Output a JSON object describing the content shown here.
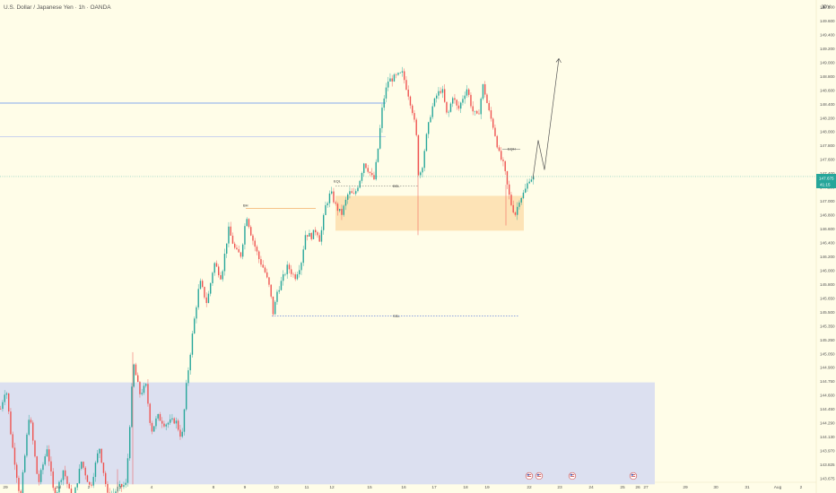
{
  "chart_data": {
    "type": "candlestick",
    "title": "U.S. Dollar / Japanese Yen · 1h · OANDA",
    "currency": "JPY",
    "price_label": "147.675",
    "countdown_label": "41:15",
    "y_ticks": [
      "149.800",
      "149.600",
      "149.400",
      "149.200",
      "149.000",
      "148.800",
      "148.600",
      "148.400",
      "148.200",
      "148.000",
      "147.800",
      "147.600",
      "147.400",
      "147.200",
      "147.000",
      "146.800",
      "146.600",
      "146.400",
      "146.200",
      "146.000",
      "145.800",
      "145.650",
      "145.500",
      "145.350",
      "145.250",
      "145.050",
      "144.900",
      "144.750",
      "144.600",
      "144.450",
      "144.290",
      "144.130",
      "143.970",
      "143.825",
      "143.675"
    ],
    "x_ticks": [
      "29",
      "Jul",
      "2",
      "3",
      "4",
      "8",
      "9",
      "10",
      "11",
      "12",
      "15",
      "16",
      "17",
      "18",
      "19",
      "22",
      "23",
      "24",
      "25",
      "26",
      "27",
      "29",
      "30",
      "31",
      "Aug",
      "2"
    ],
    "annotations": {
      "swept_high": "BH",
      "mid_label": "BSL",
      "low_label": "SSL",
      "eq_label": "EQL",
      "small_label": "EQH"
    },
    "anchors": [
      [
        0,
        144.6
      ],
      [
        6,
        144.9
      ],
      [
        12,
        144.2
      ],
      [
        22,
        143.4
      ],
      [
        32,
        144.55
      ],
      [
        42,
        143.6
      ],
      [
        52,
        144.1
      ],
      [
        60,
        143.4
      ],
      [
        70,
        143.8
      ],
      [
        80,
        143.35
      ],
      [
        90,
        143.9
      ],
      [
        100,
        143.55
      ],
      [
        110,
        144.1
      ],
      [
        120,
        143.4
      ],
      [
        131,
        143.55
      ],
      [
        140,
        143.6
      ],
      [
        148,
        145.2
      ],
      [
        155,
        144.8
      ],
      [
        162,
        144.9
      ],
      [
        168,
        144.3
      ],
      [
        175,
        144.5
      ],
      [
        183,
        144.4
      ],
      [
        195,
        144.45
      ],
      [
        202,
        144.2
      ],
      [
        207,
        144.9
      ],
      [
        215,
        145.7
      ],
      [
        222,
        146.3
      ],
      [
        230,
        146.0
      ],
      [
        238,
        146.55
      ],
      [
        246,
        146.35
      ],
      [
        254,
        147.0
      ],
      [
        262,
        146.7
      ],
      [
        268,
        146.65
      ],
      [
        274,
        147.2
      ],
      [
        280,
        146.9
      ],
      [
        288,
        146.6
      ],
      [
        294,
        146.45
      ],
      [
        300,
        146.2
      ],
      [
        304,
        145.85
      ],
      [
        308,
        146.15
      ],
      [
        315,
        146.35
      ],
      [
        320,
        146.5
      ],
      [
        328,
        146.35
      ],
      [
        335,
        146.55
      ],
      [
        340,
        146.95
      ],
      [
        346,
        146.9
      ],
      [
        352,
        147.0
      ],
      [
        356,
        146.85
      ],
      [
        362,
        147.3
      ],
      [
        368,
        147.5
      ],
      [
        374,
        147.3
      ],
      [
        380,
        147.2
      ],
      [
        388,
        147.5
      ],
      [
        394,
        147.45
      ],
      [
        400,
        147.65
      ],
      [
        405,
        147.9
      ],
      [
        410,
        147.8
      ],
      [
        416,
        147.65
      ],
      [
        420,
        148.0
      ],
      [
        426,
        148.7
      ],
      [
        432,
        149.0
      ],
      [
        440,
        149.05
      ],
      [
        448,
        149.1
      ],
      [
        455,
        148.8
      ],
      [
        460,
        148.55
      ],
      [
        464,
        148.2
      ],
      [
        466,
        147.7
      ],
      [
        470,
        147.85
      ],
      [
        474,
        148.2
      ],
      [
        480,
        148.6
      ],
      [
        486,
        148.8
      ],
      [
        492,
        148.9
      ],
      [
        498,
        148.5
      ],
      [
        504,
        148.8
      ],
      [
        510,
        148.6
      ],
      [
        516,
        148.8
      ],
      [
        520,
        148.9
      ],
      [
        526,
        148.6
      ],
      [
        532,
        148.5
      ],
      [
        538,
        148.95
      ],
      [
        544,
        148.6
      ],
      [
        550,
        148.35
      ],
      [
        556,
        148.0
      ],
      [
        561,
        147.85
      ],
      [
        566,
        147.5
      ],
      [
        570,
        147.3
      ],
      [
        574,
        147.2
      ],
      [
        578,
        147.4
      ],
      [
        584,
        147.5
      ],
      [
        590,
        147.7
      ],
      [
        594,
        147.68
      ]
    ],
    "projection": [
      [
        594,
        147.68
      ],
      [
        600,
        148.2
      ],
      [
        607,
        147.8
      ],
      [
        623,
        149.3
      ]
    ],
    "levels": [
      148.7,
      148.25
    ],
    "zones": [
      {
        "name": "demand",
        "y_top": 147.45,
        "y_bottom": 146.98,
        "color": "#fde3b6"
      },
      {
        "name": "htf",
        "y_top": 144.95,
        "y_bottom": 143.6,
        "color": "#dce0f0"
      }
    ],
    "colors": {
      "up": "#26a69a",
      "down": "#ef5350",
      "level": "#5b8def",
      "bg": "#fffde8",
      "axis_text": "#555555",
      "price_bg": "#26a69a"
    },
    "events": [
      "us-flag-icon",
      "us-flag-icon",
      "us-flag-icon",
      "us-flag-icon"
    ]
  }
}
